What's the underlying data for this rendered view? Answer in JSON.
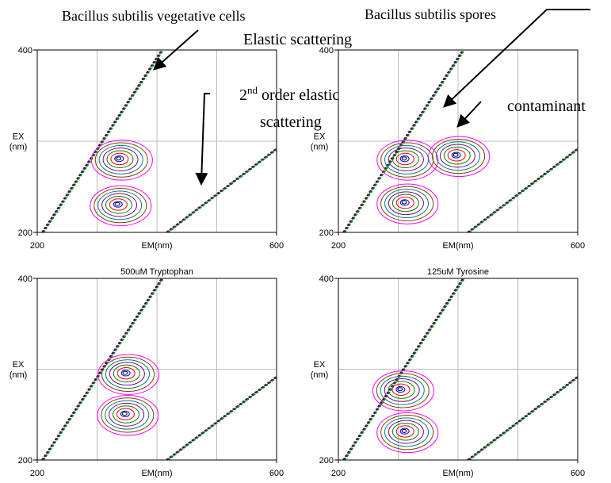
{
  "chart_data": [
    {
      "type": "contour",
      "xlabel": "EM(nm)",
      "ylabel": [
        "EX",
        "(nm)"
      ],
      "xlim": [
        200,
        600
      ],
      "ylim": [
        200,
        400
      ],
      "xticks": [
        200,
        600
      ],
      "yticks": [
        200,
        400
      ],
      "xgrid": [
        300,
        400,
        500
      ],
      "ygrid": [
        300
      ],
      "peaks": [
        {
          "x": 336,
          "y": 281
        },
        {
          "x": 334,
          "y": 231
        }
      ]
    },
    {
      "type": "contour",
      "xlabel": "EM(nm)",
      "ylabel": [
        "EX",
        "(nm)"
      ],
      "xlim": [
        200,
        600
      ],
      "ylim": [
        200,
        400
      ],
      "xticks": [
        200,
        600
      ],
      "yticks": [
        200,
        400
      ],
      "xgrid": [
        300,
        400,
        500
      ],
      "ygrid": [
        300
      ],
      "peaks": [
        {
          "x": 310,
          "y": 281
        },
        {
          "x": 310,
          "y": 233
        },
        {
          "x": 396,
          "y": 285
        }
      ]
    },
    {
      "type": "contour",
      "title": "500uM Tryptophan",
      "xlabel": "EM(nm)",
      "ylabel": [
        "EX",
        "(nm)"
      ],
      "xlim": [
        200,
        600
      ],
      "ylim": [
        200,
        400
      ],
      "xticks": [
        200,
        600
      ],
      "yticks": [
        200,
        400
      ],
      "xgrid": [
        300,
        400,
        500
      ],
      "ygrid": [
        300
      ],
      "peaks": [
        {
          "x": 347,
          "y": 296
        },
        {
          "x": 346,
          "y": 251
        }
      ]
    },
    {
      "type": "contour",
      "title": "125uM Tyrosine",
      "xlabel": "EM(nm)",
      "ylabel": [
        "EX",
        "(nm)"
      ],
      "xlim": [
        200,
        600
      ],
      "ylim": [
        200,
        400
      ],
      "xticks": [
        200,
        600
      ],
      "yticks": [
        200,
        400
      ],
      "xgrid": [
        300,
        400,
        500
      ],
      "ygrid": [
        300
      ],
      "peaks": [
        {
          "x": 303,
          "y": 278
        },
        {
          "x": 310,
          "y": 232
        }
      ]
    }
  ],
  "annotations": {
    "vegetative": "Bacillus subtilis vegetative cells",
    "elastic": "Elastic scattering",
    "second_num": "2",
    "second_sup": "nd",
    "second_rest": " order elastic",
    "second_line2": "scattering",
    "spores": "Bacillus subtilis spores",
    "contaminant": "contaminant"
  }
}
